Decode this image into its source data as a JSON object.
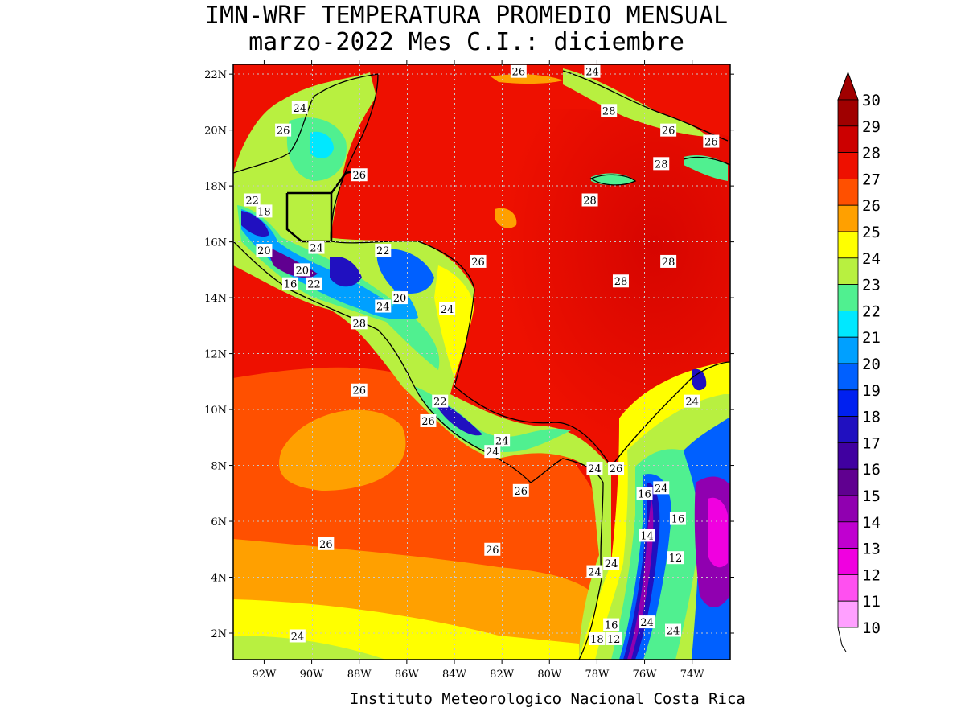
{
  "title_line1": "IMN-WRF  TEMPERATURA PROMEDIO MENSUAL",
  "title_line2": "marzo-2022 Mes C.I.: diciembre",
  "credit": "Instituto Meteorologico Nacional Costa Rica",
  "lat_ticks": [
    "22N",
    "20N",
    "18N",
    "16N",
    "14N",
    "12N",
    "10N",
    "8N",
    "6N",
    "4N",
    "2N"
  ],
  "lon_ticks": [
    "92W",
    "90W",
    "88W",
    "86W",
    "84W",
    "82W",
    "80W",
    "78W",
    "76W",
    "74W"
  ],
  "colorbar": {
    "labels": [
      "30",
      "29",
      "28",
      "27",
      "26",
      "25",
      "24",
      "23",
      "22",
      "21",
      "20",
      "19",
      "18",
      "17",
      "16",
      "15",
      "14",
      "13",
      "12",
      "11",
      "10"
    ],
    "colors": [
      "#a00000",
      "#cc0000",
      "#ee1000",
      "#ff5000",
      "#ffa000",
      "#ffff00",
      "#b8f040",
      "#50f090",
      "#00e8ff",
      "#00a0ff",
      "#0060ff",
      "#0020f0",
      "#2010c0",
      "#4000a0",
      "#600090",
      "#9000b0",
      "#c000d0",
      "#f000e0",
      "#ff50f0",
      "#ffa0ff"
    ]
  },
  "contour_labels": [
    {
      "text": "26",
      "lon": -81.3,
      "lat": 22.1
    },
    {
      "text": "24",
      "lon": -78.2,
      "lat": 22.1
    },
    {
      "text": "24",
      "lon": -90.5,
      "lat": 20.8
    },
    {
      "text": "26",
      "lon": -91.2,
      "lat": 20.0
    },
    {
      "text": "28",
      "lon": -77.5,
      "lat": 20.7
    },
    {
      "text": "26",
      "lon": -75.0,
      "lat": 20.0
    },
    {
      "text": "26",
      "lon": -73.2,
      "lat": 19.6
    },
    {
      "text": "28",
      "lon": -75.3,
      "lat": 18.8
    },
    {
      "text": "26",
      "lon": -88.0,
      "lat": 18.4
    },
    {
      "text": "22",
      "lon": -92.5,
      "lat": 17.5
    },
    {
      "text": "18",
      "lon": -92.0,
      "lat": 17.1
    },
    {
      "text": "28",
      "lon": -78.3,
      "lat": 17.5
    },
    {
      "text": "24",
      "lon": -89.8,
      "lat": 15.8
    },
    {
      "text": "22",
      "lon": -87.0,
      "lat": 15.7
    },
    {
      "text": "20",
      "lon": -92.0,
      "lat": 15.7
    },
    {
      "text": "26",
      "lon": -83.0,
      "lat": 15.3
    },
    {
      "text": "28",
      "lon": -75.0,
      "lat": 15.3
    },
    {
      "text": "20",
      "lon": -90.4,
      "lat": 15.0
    },
    {
      "text": "16",
      "lon": -90.9,
      "lat": 14.5
    },
    {
      "text": "22",
      "lon": -89.9,
      "lat": 14.5
    },
    {
      "text": "28",
      "lon": -77.0,
      "lat": 14.6
    },
    {
      "text": "20",
      "lon": -86.3,
      "lat": 14.0
    },
    {
      "text": "24",
      "lon": -87.0,
      "lat": 13.7
    },
    {
      "text": "24",
      "lon": -84.3,
      "lat": 13.6
    },
    {
      "text": "28",
      "lon": -88.0,
      "lat": 13.1
    },
    {
      "text": "26",
      "lon": -88.0,
      "lat": 10.7
    },
    {
      "text": "24",
      "lon": -74.0,
      "lat": 10.3
    },
    {
      "text": "22",
      "lon": -84.6,
      "lat": 10.3
    },
    {
      "text": "26",
      "lon": -85.1,
      "lat": 9.6
    },
    {
      "text": "24",
      "lon": -82.0,
      "lat": 8.9
    },
    {
      "text": "24",
      "lon": -82.4,
      "lat": 8.5
    },
    {
      "text": "24",
      "lon": -78.1,
      "lat": 7.9
    },
    {
      "text": "26",
      "lon": -77.2,
      "lat": 7.9
    },
    {
      "text": "26",
      "lon": -81.2,
      "lat": 7.1
    },
    {
      "text": "16",
      "lon": -76.0,
      "lat": 7.0
    },
    {
      "text": "24",
      "lon": -75.3,
      "lat": 7.2
    },
    {
      "text": "16",
      "lon": -74.6,
      "lat": 6.1
    },
    {
      "text": "14",
      "lon": -75.9,
      "lat": 5.5
    },
    {
      "text": "26",
      "lon": -89.4,
      "lat": 5.2
    },
    {
      "text": "26",
      "lon": -82.4,
      "lat": 5.0
    },
    {
      "text": "12",
      "lon": -74.7,
      "lat": 4.7
    },
    {
      "text": "24",
      "lon": -77.4,
      "lat": 4.5
    },
    {
      "text": "24",
      "lon": -78.1,
      "lat": 4.2
    },
    {
      "text": "16",
      "lon": -77.4,
      "lat": 2.3
    },
    {
      "text": "24",
      "lon": -75.9,
      "lat": 2.4
    },
    {
      "text": "24",
      "lon": -74.8,
      "lat": 2.1
    },
    {
      "text": "18",
      "lon": -78.0,
      "lat": 1.8
    },
    {
      "text": "12",
      "lon": -77.3,
      "lat": 1.8
    },
    {
      "text": "24",
      "lon": -90.6,
      "lat": 1.9
    }
  ]
}
